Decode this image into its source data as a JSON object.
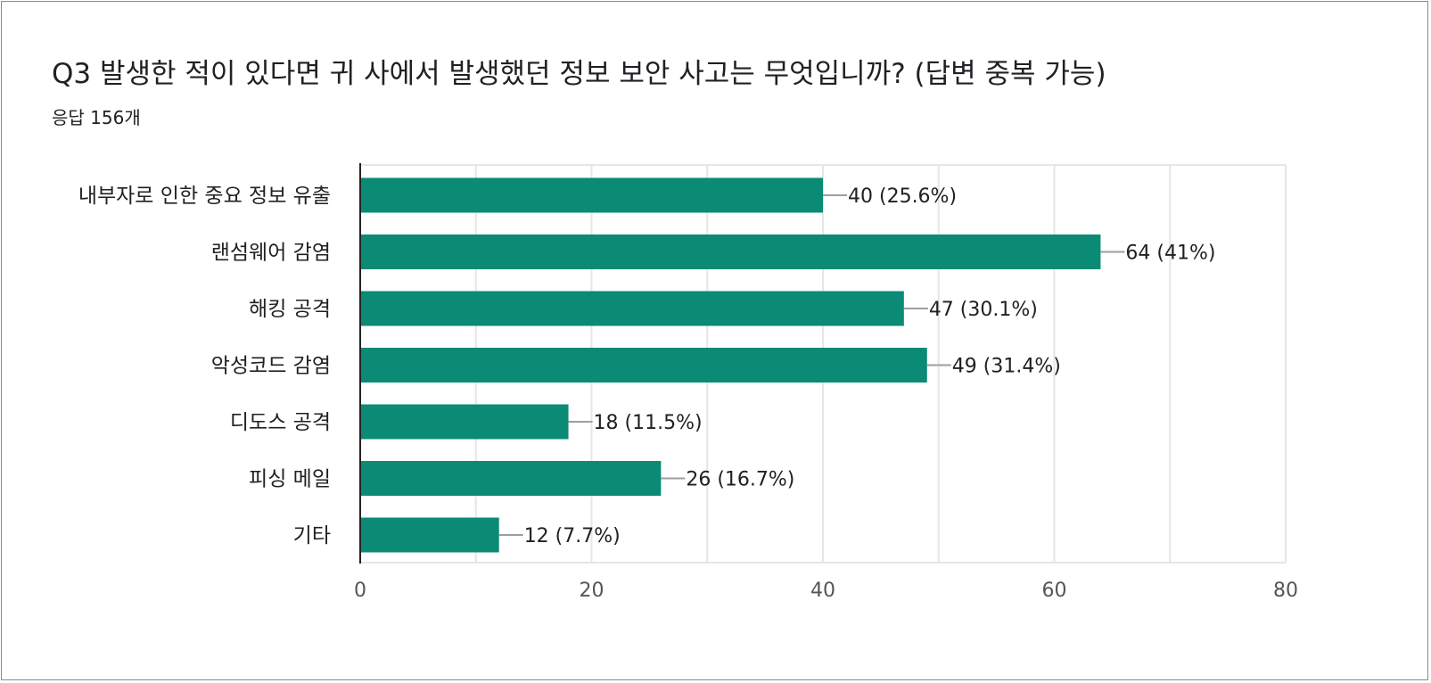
{
  "question": {
    "title": "Q3  발생한 적이 있다면 귀 사에서 발생했던 정보 보안 사고는 무엇입니까? (답변 중복 가능)",
    "response_count": "응답 156개"
  },
  "colors": {
    "bar": "#0B8A76",
    "grid": "#e6e6e6",
    "axis": "#222222",
    "connector": "#9e9e9e",
    "text": "#202124",
    "tick_text": "#555555"
  },
  "chart_data": {
    "type": "bar",
    "orientation": "horizontal",
    "categories": [
      "내부자로 인한 중요 정보 유출",
      "랜섬웨어 감염",
      "해킹 공격",
      "악성코드 감염",
      "디도스 공격",
      "피싱 메일",
      "기타"
    ],
    "values": [
      40,
      64,
      47,
      49,
      18,
      26,
      12
    ],
    "data_labels": [
      "40 (25.6%)",
      "64 (41%)",
      "47 (30.1%)",
      "49 (31.4%)",
      "18 (11.5%)",
      "26 (16.7%)",
      "12 (7.7%)"
    ],
    "xlim": [
      0,
      80
    ],
    "x_ticks": [
      0,
      20,
      40,
      60,
      80
    ],
    "grid": true,
    "legend": "none"
  }
}
